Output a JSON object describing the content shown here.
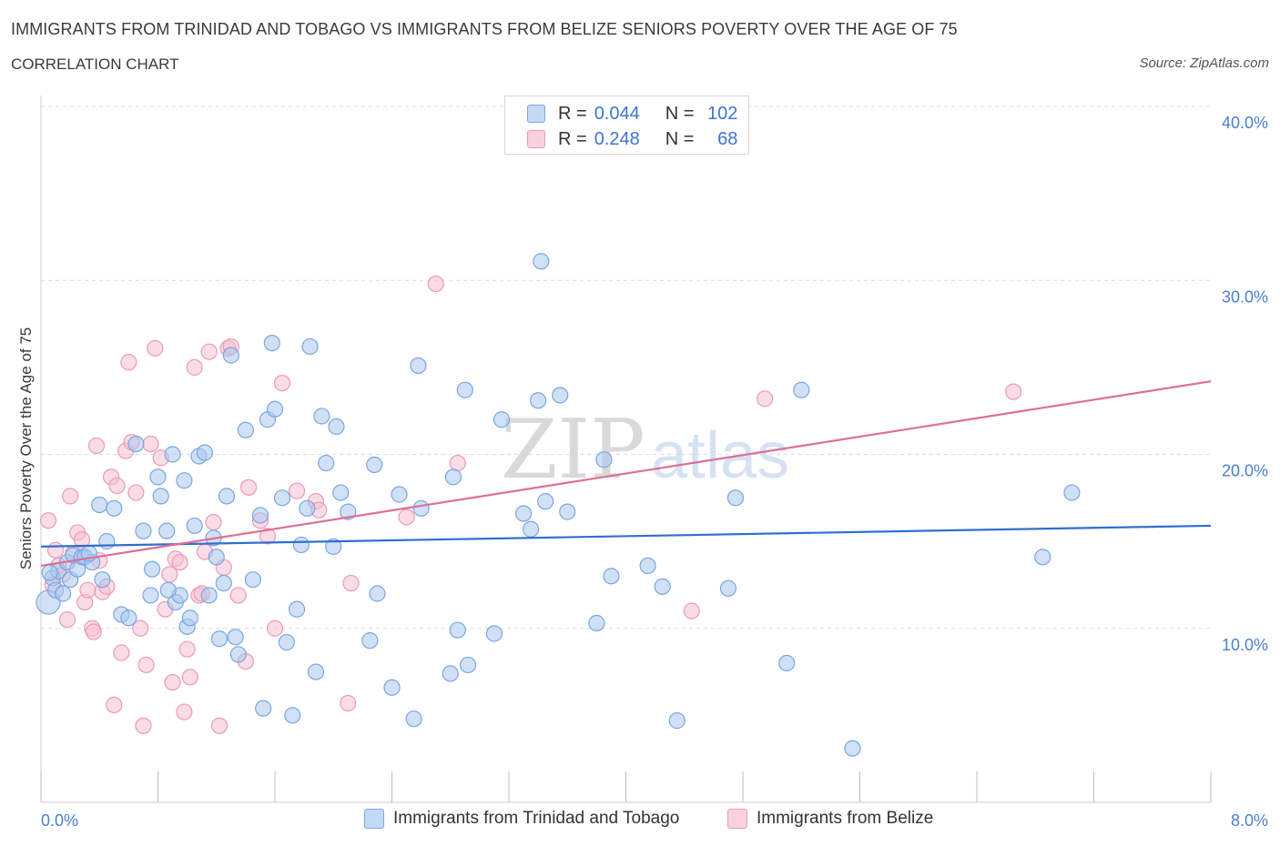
{
  "header": {
    "title": "IMMIGRANTS FROM TRINIDAD AND TOBAGO VS IMMIGRANTS FROM BELIZE SENIORS POVERTY OVER THE AGE OF 75",
    "subtitle": "CORRELATION CHART",
    "source": "Source: ZipAtlas.com"
  },
  "legend": {
    "rows": [
      {
        "r_label": "R =",
        "r_value": "0.044",
        "n_label": "N =",
        "n_value": "102"
      },
      {
        "r_label": "R =",
        "r_value": "0.248",
        "n_label": "N =",
        "n_value": "68"
      }
    ]
  },
  "watermark": {
    "zip": "ZIP",
    "atlas": "atlas"
  },
  "colors": {
    "blue_fill": "#a9c8ef",
    "blue_stroke": "#7aa6e0",
    "blue_line": "#2f6fd0",
    "pink_fill": "#f6c0d2",
    "pink_stroke": "#ec9ab6",
    "pink_line": "#e06d96",
    "grid": "#dcdcdc",
    "tick_text": "#4a7fd1"
  },
  "chart_data": {
    "type": "scatter",
    "title": "IMMIGRANTS FROM TRINIDAD AND TOBAGO VS IMMIGRANTS FROM BELIZE SENIORS POVERTY OVER THE AGE OF 75",
    "xlabel": "",
    "ylabel": "Seniors Poverty Over the Age of 75",
    "xlim": [
      0,
      8
    ],
    "ylim": [
      0,
      40
    ],
    "x_tick_labels": [
      "0.0%",
      "8.0%"
    ],
    "y_ticks": [
      10,
      20,
      30,
      40
    ],
    "y_tick_labels": [
      "10.0%",
      "20.0%",
      "30.0%",
      "40.0%"
    ],
    "grid": "horizontal dashed",
    "legend_placement": "top-center and bottom",
    "series": [
      {
        "name": "Immigrants from Trinidad and Tobago",
        "R": 0.044,
        "N": 102,
        "trend": {
          "x": [
            0,
            8
          ],
          "y": [
            14.7,
            15.9
          ]
        },
        "points": [
          [
            0.05,
            11.5
          ],
          [
            0.08,
            12.9
          ],
          [
            0.1,
            12.2
          ],
          [
            0.12,
            13.3
          ],
          [
            0.15,
            12.0
          ],
          [
            0.18,
            13.8
          ],
          [
            0.2,
            12.8
          ],
          [
            0.22,
            14.2
          ],
          [
            0.25,
            13.4
          ],
          [
            0.28,
            14.1
          ],
          [
            0.3,
            14.1
          ],
          [
            0.35,
            13.8
          ],
          [
            0.4,
            17.1
          ],
          [
            0.42,
            12.8
          ],
          [
            0.45,
            15.0
          ],
          [
            0.55,
            10.8
          ],
          [
            0.6,
            10.6
          ],
          [
            0.65,
            20.6
          ],
          [
            0.7,
            15.6
          ],
          [
            0.75,
            11.9
          ],
          [
            0.76,
            13.4
          ],
          [
            0.8,
            18.7
          ],
          [
            0.82,
            17.6
          ],
          [
            0.86,
            15.6
          ],
          [
            0.9,
            20.0
          ],
          [
            0.92,
            11.5
          ],
          [
            0.95,
            11.9
          ],
          [
            1.0,
            10.1
          ],
          [
            1.02,
            10.6
          ],
          [
            1.05,
            15.9
          ],
          [
            1.08,
            19.9
          ],
          [
            1.12,
            20.1
          ],
          [
            1.15,
            11.9
          ],
          [
            1.18,
            15.2
          ],
          [
            1.2,
            14.1
          ],
          [
            1.22,
            9.4
          ],
          [
            1.25,
            12.6
          ],
          [
            1.27,
            17.6
          ],
          [
            1.3,
            25.7
          ],
          [
            1.33,
            9.5
          ],
          [
            1.35,
            8.5
          ],
          [
            1.4,
            21.4
          ],
          [
            1.45,
            12.8
          ],
          [
            1.5,
            16.5
          ],
          [
            1.52,
            5.4
          ],
          [
            1.55,
            22.0
          ],
          [
            1.58,
            26.4
          ],
          [
            1.6,
            22.6
          ],
          [
            1.65,
            17.5
          ],
          [
            1.68,
            9.2
          ],
          [
            1.72,
            5.0
          ],
          [
            1.75,
            11.1
          ],
          [
            1.78,
            14.8
          ],
          [
            1.82,
            16.9
          ],
          [
            1.84,
            26.2
          ],
          [
            1.88,
            7.5
          ],
          [
            1.92,
            22.2
          ],
          [
            1.95,
            19.5
          ],
          [
            2.0,
            14.7
          ],
          [
            2.02,
            21.6
          ],
          [
            2.05,
            17.8
          ],
          [
            2.1,
            16.7
          ],
          [
            2.25,
            9.3
          ],
          [
            2.28,
            19.4
          ],
          [
            2.3,
            12.0
          ],
          [
            2.4,
            6.6
          ],
          [
            2.45,
            17.7
          ],
          [
            2.55,
            4.8
          ],
          [
            2.58,
            25.1
          ],
          [
            2.6,
            16.9
          ],
          [
            2.8,
            7.4
          ],
          [
            2.82,
            18.7
          ],
          [
            2.85,
            9.9
          ],
          [
            2.9,
            23.7
          ],
          [
            2.92,
            7.9
          ],
          [
            3.1,
            9.7
          ],
          [
            3.15,
            22.0
          ],
          [
            3.3,
            16.6
          ],
          [
            3.35,
            15.7
          ],
          [
            3.4,
            23.1
          ],
          [
            3.42,
            31.1
          ],
          [
            3.45,
            17.3
          ],
          [
            3.55,
            23.4
          ],
          [
            3.6,
            16.7
          ],
          [
            3.8,
            10.3
          ],
          [
            3.85,
            19.7
          ],
          [
            3.9,
            13.0
          ],
          [
            4.15,
            13.6
          ],
          [
            4.25,
            12.4
          ],
          [
            4.35,
            4.7
          ],
          [
            4.7,
            12.3
          ],
          [
            4.75,
            17.5
          ],
          [
            5.1,
            8.0
          ],
          [
            5.2,
            23.7
          ],
          [
            5.55,
            3.1
          ],
          [
            6.85,
            14.1
          ],
          [
            7.05,
            17.8
          ],
          [
            0.06,
            13.2
          ],
          [
            0.33,
            14.3
          ],
          [
            0.5,
            16.9
          ],
          [
            0.87,
            12.2
          ],
          [
            0.98,
            18.5
          ]
        ]
      },
      {
        "name": "Immigrants from Belize",
        "R": 0.248,
        "N": 68,
        "trend": {
          "x": [
            0,
            8
          ],
          "y": [
            13.6,
            24.2
          ]
        },
        "points": [
          [
            0.05,
            16.2
          ],
          [
            0.08,
            12.5
          ],
          [
            0.1,
            14.5
          ],
          [
            0.12,
            13.6
          ],
          [
            0.15,
            13.1
          ],
          [
            0.2,
            17.6
          ],
          [
            0.22,
            14.3
          ],
          [
            0.25,
            15.5
          ],
          [
            0.28,
            15.1
          ],
          [
            0.3,
            11.5
          ],
          [
            0.32,
            12.2
          ],
          [
            0.35,
            10.0
          ],
          [
            0.36,
            9.8
          ],
          [
            0.38,
            20.5
          ],
          [
            0.42,
            12.1
          ],
          [
            0.45,
            12.4
          ],
          [
            0.48,
            18.7
          ],
          [
            0.5,
            5.6
          ],
          [
            0.52,
            18.2
          ],
          [
            0.55,
            8.6
          ],
          [
            0.58,
            20.2
          ],
          [
            0.6,
            25.3
          ],
          [
            0.62,
            20.7
          ],
          [
            0.65,
            17.8
          ],
          [
            0.68,
            10.0
          ],
          [
            0.7,
            4.4
          ],
          [
            0.72,
            7.9
          ],
          [
            0.75,
            20.6
          ],
          [
            0.78,
            26.1
          ],
          [
            0.82,
            19.8
          ],
          [
            0.85,
            11.1
          ],
          [
            0.88,
            13.1
          ],
          [
            0.9,
            6.9
          ],
          [
            0.92,
            14.0
          ],
          [
            0.95,
            13.8
          ],
          [
            0.98,
            5.2
          ],
          [
            1.0,
            8.8
          ],
          [
            1.02,
            7.2
          ],
          [
            1.05,
            25.0
          ],
          [
            1.08,
            11.9
          ],
          [
            1.1,
            12.0
          ],
          [
            1.12,
            14.4
          ],
          [
            1.15,
            25.9
          ],
          [
            1.18,
            16.1
          ],
          [
            1.22,
            4.4
          ],
          [
            1.25,
            13.5
          ],
          [
            1.28,
            26.1
          ],
          [
            1.3,
            26.2
          ],
          [
            1.35,
            11.9
          ],
          [
            1.4,
            8.1
          ],
          [
            1.42,
            18.1
          ],
          [
            1.5,
            16.2
          ],
          [
            1.55,
            15.3
          ],
          [
            1.6,
            10.0
          ],
          [
            1.65,
            24.1
          ],
          [
            1.75,
            17.9
          ],
          [
            1.88,
            17.3
          ],
          [
            1.9,
            16.8
          ],
          [
            2.1,
            5.7
          ],
          [
            2.12,
            12.6
          ],
          [
            2.5,
            16.4
          ],
          [
            2.7,
            29.8
          ],
          [
            2.85,
            19.5
          ],
          [
            4.45,
            11.0
          ],
          [
            4.95,
            23.2
          ],
          [
            6.65,
            23.6
          ],
          [
            0.18,
            10.5
          ],
          [
            0.4,
            13.9
          ]
        ]
      }
    ]
  },
  "bottom_legend": {
    "items": [
      "Immigrants from Trinidad and Tobago",
      "Immigrants from Belize"
    ]
  }
}
